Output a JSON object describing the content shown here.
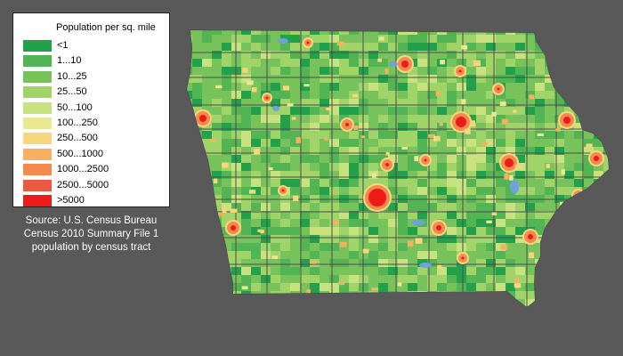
{
  "legend": {
    "title": "Population per sq. mile",
    "items": [
      {
        "label": "<1",
        "color": "#22a14a"
      },
      {
        "label": "1...10",
        "color": "#52b452"
      },
      {
        "label": "10...25",
        "color": "#78c25c"
      },
      {
        "label": "25...50",
        "color": "#a0d468"
      },
      {
        "label": "50...100",
        "color": "#c7e27e"
      },
      {
        "label": "100...250",
        "color": "#ebe893"
      },
      {
        "label": "250...500",
        "color": "#f8d67e"
      },
      {
        "label": "500...1000",
        "color": "#f7b062"
      },
      {
        "label": "1000...2500",
        "color": "#f58a4e"
      },
      {
        "label": "2500...5000",
        "color": "#ee5a3e"
      },
      {
        "label": ">5000",
        "color": "#ee1a1a"
      }
    ]
  },
  "source": {
    "line1": "Source: U.S. Census Bureau",
    "line2": "Census 2010 Summary File 1",
    "line3": "population by census tract"
  },
  "map": {
    "background_color": "#595959",
    "base_color": "#78c25c",
    "border_color": "#4d4d4d",
    "water_color": "#6fa1de"
  }
}
